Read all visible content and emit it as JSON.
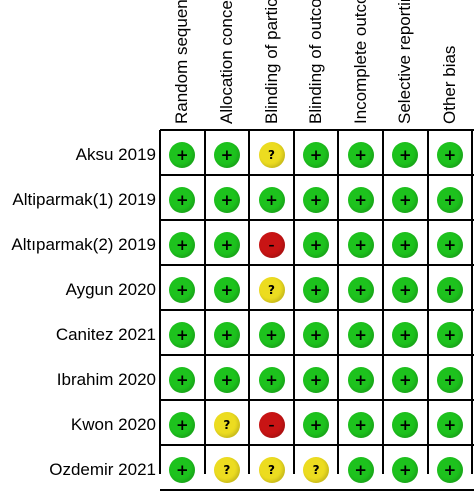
{
  "chart_data": {
    "type": "table",
    "domains": [
      "Random sequence generation (selection bias)",
      "Allocation concealment (selection bias)",
      "Blinding of participants and personnel (performance bias)",
      "Blinding of outcome assessment (detection bias)",
      "Incomplete outcome data (attrition bias)",
      "Selective reporting (reporting bias)",
      "Other bias"
    ],
    "studies": [
      "Aksu 2019",
      "Altiparmak(1) 2019",
      "Altıparmak(2) 2019",
      "Aygun 2020",
      "Canitez 2021",
      "Ibrahim 2020",
      "Kwon 2020",
      "Ozdemir 2021"
    ],
    "judgements": [
      [
        "low",
        "low",
        "unclear",
        "low",
        "low",
        "low",
        "low"
      ],
      [
        "low",
        "low",
        "low",
        "low",
        "low",
        "low",
        "low"
      ],
      [
        "low",
        "low",
        "high",
        "low",
        "low",
        "low",
        "low"
      ],
      [
        "low",
        "low",
        "unclear",
        "low",
        "low",
        "low",
        "low"
      ],
      [
        "low",
        "low",
        "low",
        "low",
        "low",
        "low",
        "low"
      ],
      [
        "low",
        "low",
        "low",
        "low",
        "low",
        "low",
        "low"
      ],
      [
        "low",
        "unclear",
        "high",
        "low",
        "low",
        "low",
        "low"
      ],
      [
        "low",
        "unclear",
        "unclear",
        "unclear",
        "low",
        "low",
        "low"
      ]
    ],
    "symbols": {
      "low": "+",
      "unclear": "?",
      "high": "–"
    },
    "colors": {
      "low": "#1dc21d",
      "unclear": "#ecdc20",
      "high": "#c81414"
    }
  }
}
